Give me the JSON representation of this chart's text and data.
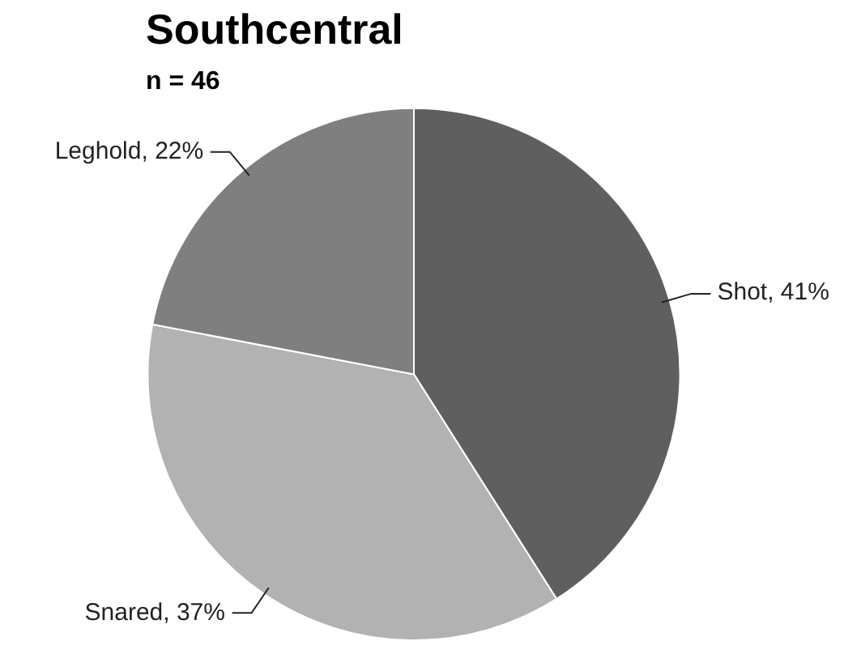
{
  "chart_data": {
    "type": "pie",
    "title": "Southcentral",
    "subtitle": "n = 46",
    "categories": [
      "Shot",
      "Snared",
      "Leghold"
    ],
    "values": [
      41,
      37,
      22
    ],
    "colors": [
      "#5f5f5f",
      "#b2b2b2",
      "#7f7f7f"
    ],
    "value_labels": [
      "41%",
      "37%",
      "22%"
    ],
    "legend": false
  }
}
